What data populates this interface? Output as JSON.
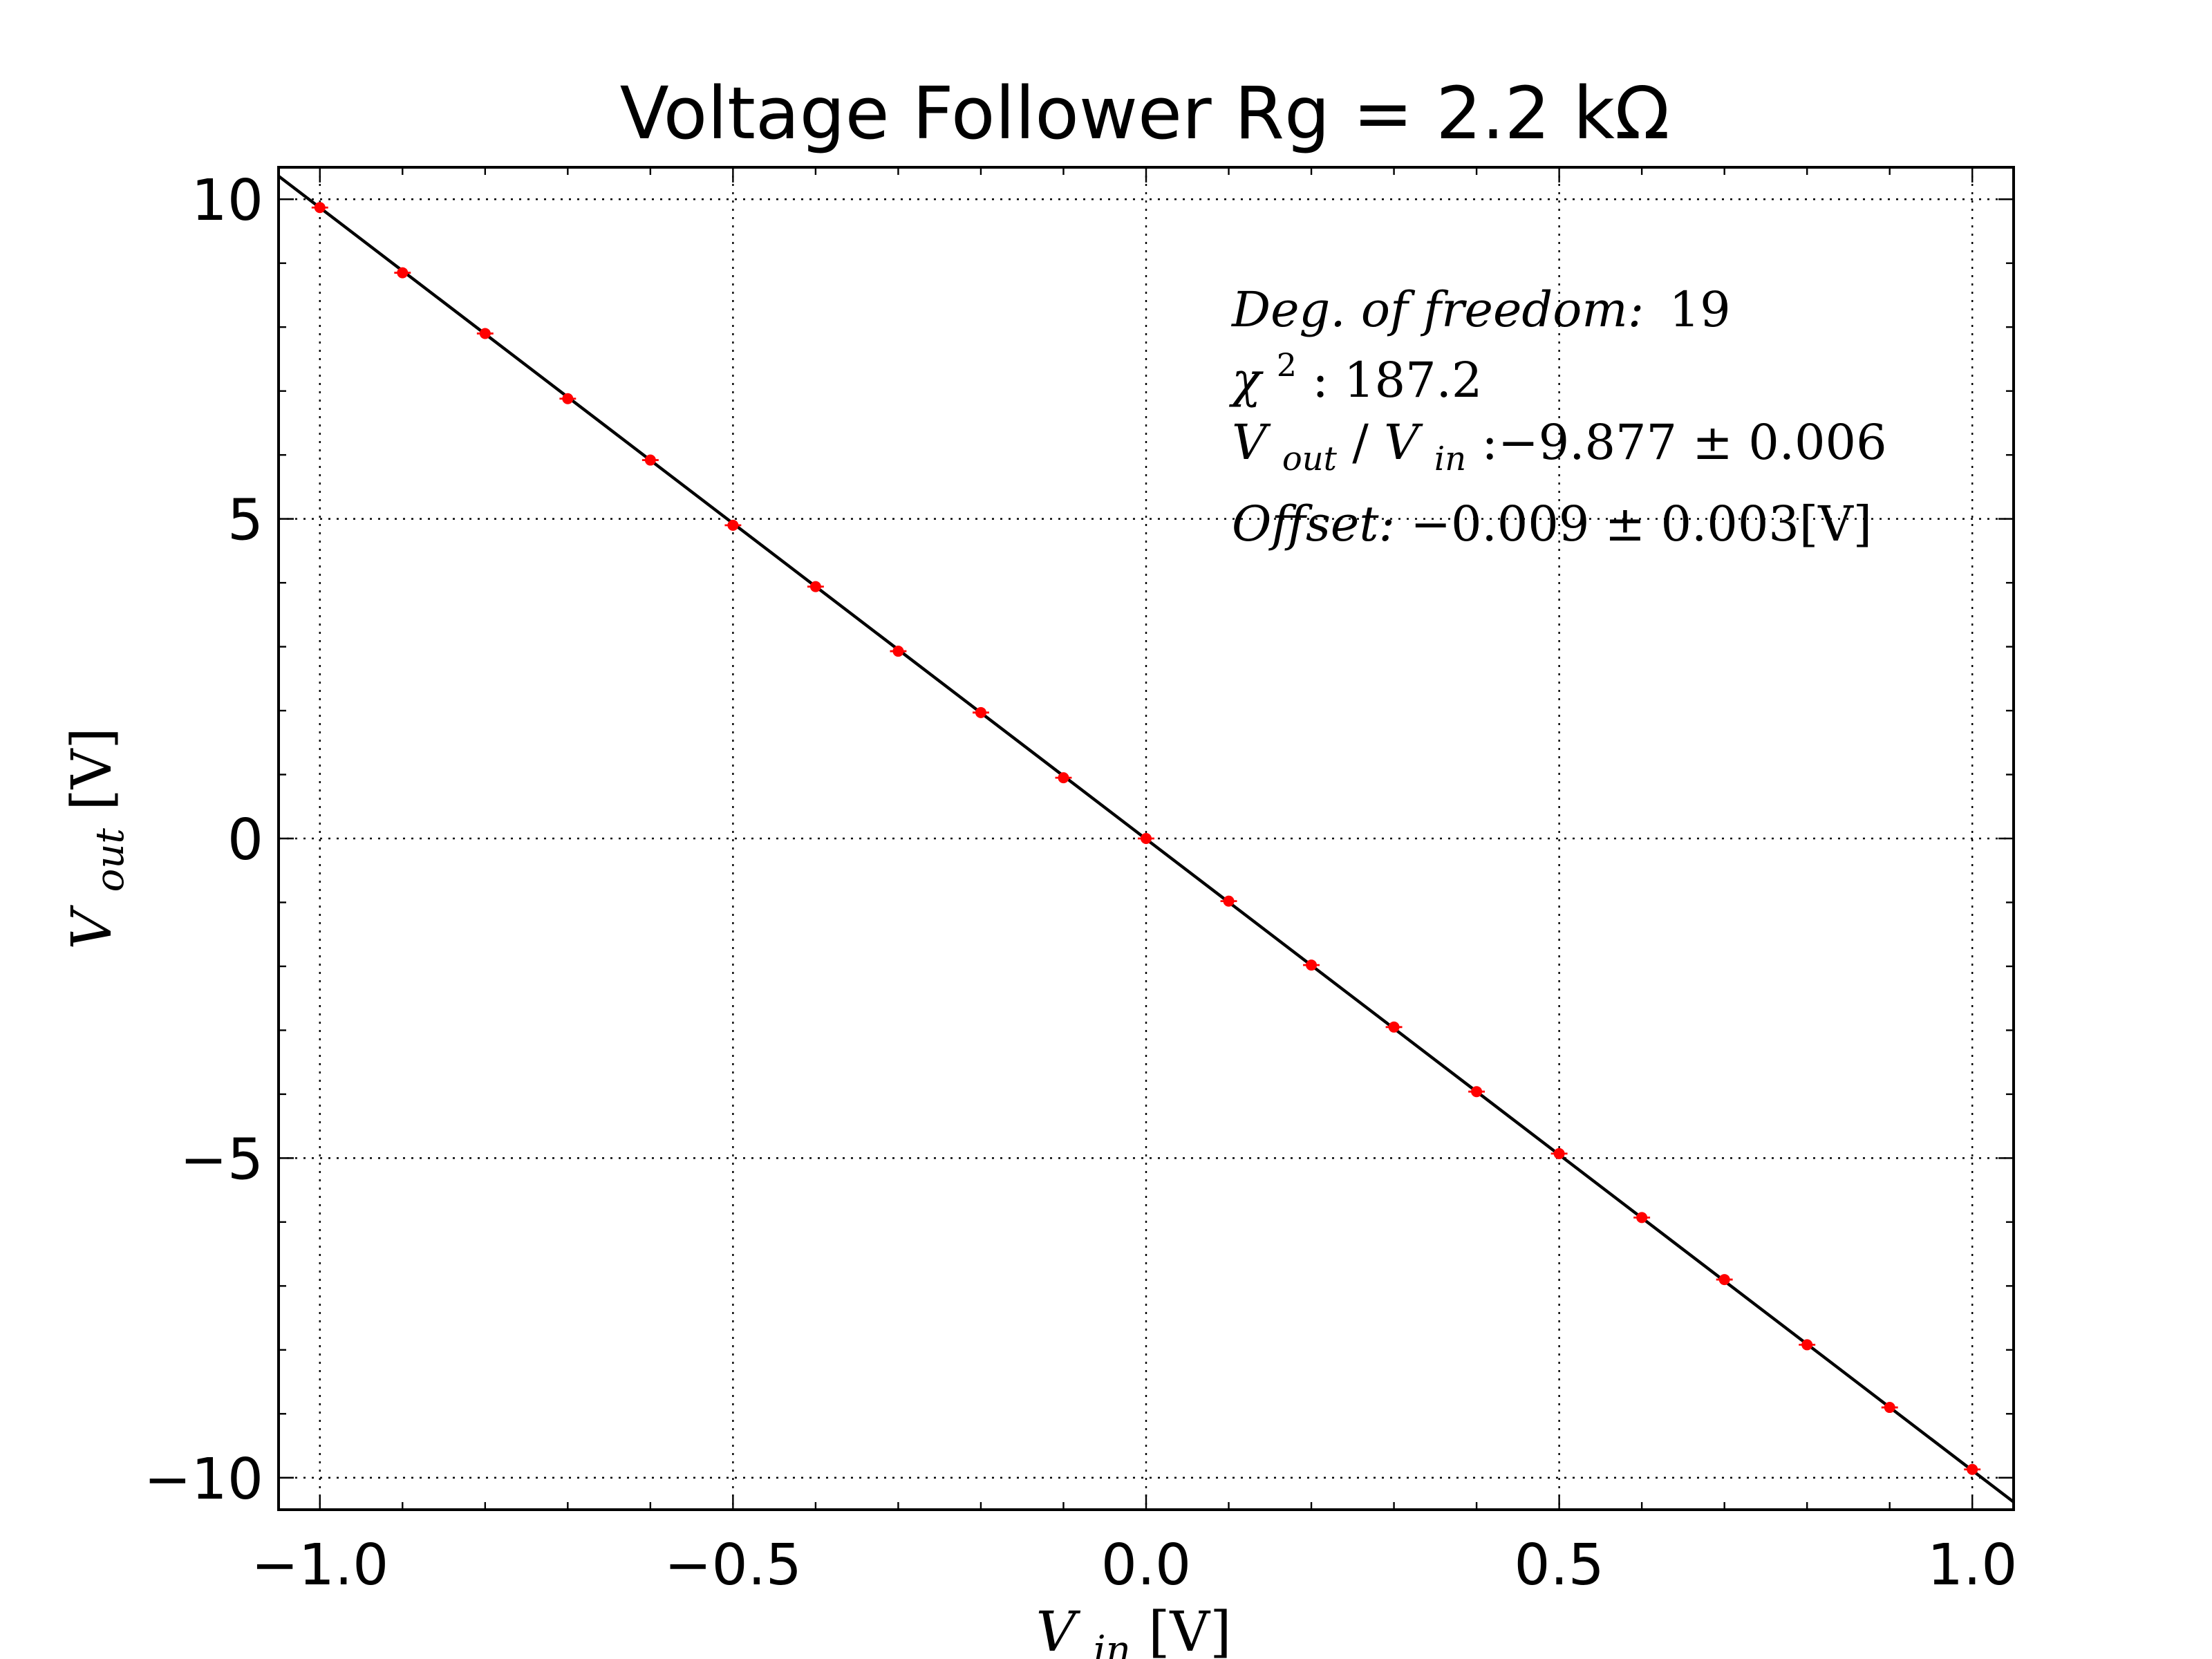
{
  "chart_data": {
    "type": "scatter",
    "title": "Voltage Follower Rg = 2.2 kΩ",
    "xlabel": {
      "base": "V",
      "sub": "in",
      "unit": "[V]"
    },
    "ylabel": {
      "base": "V",
      "sub": "out",
      "unit": "[V]"
    },
    "xlim": [
      -1.05,
      1.05
    ],
    "ylim": [
      -10.5,
      10.5
    ],
    "x_ticks": [
      -1.0,
      -0.5,
      0.0,
      0.5,
      1.0
    ],
    "x_tick_labels": [
      "−1.0",
      "−0.5",
      "0.0",
      "0.5",
      "1.0"
    ],
    "y_ticks": [
      -10,
      -5,
      0,
      5,
      10
    ],
    "y_tick_labels": [
      "−10",
      "−5",
      "0",
      "5",
      "10"
    ],
    "grid": true,
    "series": [
      {
        "type": "scatter",
        "color": "#ff0000",
        "x": [
          -1.0,
          -0.9,
          -0.8,
          -0.7,
          -0.6,
          -0.5,
          -0.4,
          -0.3,
          -0.2,
          -0.1,
          0.0,
          0.1,
          0.2,
          0.3,
          0.4,
          0.5,
          0.6,
          0.7,
          0.8,
          0.9,
          1.0
        ],
        "y": [
          9.87,
          8.85,
          7.9,
          6.88,
          5.92,
          4.9,
          3.94,
          2.93,
          1.97,
          0.95,
          0.0,
          -0.98,
          -1.98,
          -2.95,
          -3.96,
          -4.93,
          -5.93,
          -6.9,
          -7.92,
          -8.9,
          -9.87
        ],
        "x_error": 0.01
      },
      {
        "type": "line",
        "color": "#000000",
        "slope": -9.877,
        "intercept": -0.009
      }
    ],
    "annotations": {
      "dof_label": "Deg. of freedom:",
      "dof_value": "19",
      "chi_symbol": "χ",
      "chi_sup": "2",
      "chi_value": " : 187.2",
      "ratio_out_base": "V",
      "ratio_out_sub": "out",
      "ratio_slash": "/",
      "ratio_in_base": "V",
      "ratio_in_sub": "in",
      "ratio_value": " :−9.877 ± 0.006",
      "offset_label": "Offset:",
      "offset_value": " −0.009 ± 0.003[V]"
    }
  }
}
